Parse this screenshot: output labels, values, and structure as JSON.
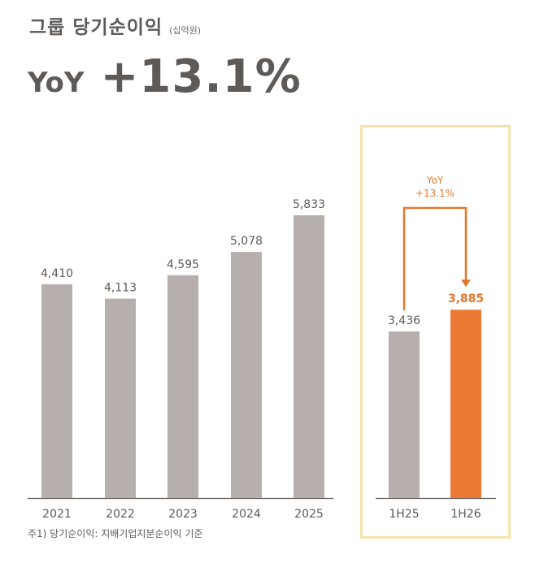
{
  "title": "그룹 당기순이익",
  "unit": "(십억원)",
  "yoy_label": "YoY",
  "yoy_value": "+13.1%",
  "footnote": "주1) 당기순이익: 지배기업지분순이익 기준",
  "colors": {
    "bar": "#b7afad",
    "highlight_bar": "#ec7a34",
    "highlight_text": "#e4782c",
    "text": "#5d5a57",
    "box_border": "#f6e3a9"
  },
  "chart_data": {
    "type": "bar",
    "categories": [
      "2021",
      "2022",
      "2023",
      "2024",
      "2025",
      "1H25",
      "1H26"
    ],
    "values": [
      4410,
      4113,
      4595,
      5078,
      5833,
      3436,
      3885
    ],
    "value_labels": [
      "4,410",
      "4,113",
      "4,595",
      "5,078",
      "5,833",
      "3,436",
      "3,885"
    ],
    "highlighted": [
      false,
      false,
      false,
      false,
      false,
      false,
      true
    ],
    "annotation": {
      "from": "1H25",
      "to": "1H26",
      "line1": "YoY",
      "line2": "+13.1%"
    }
  }
}
